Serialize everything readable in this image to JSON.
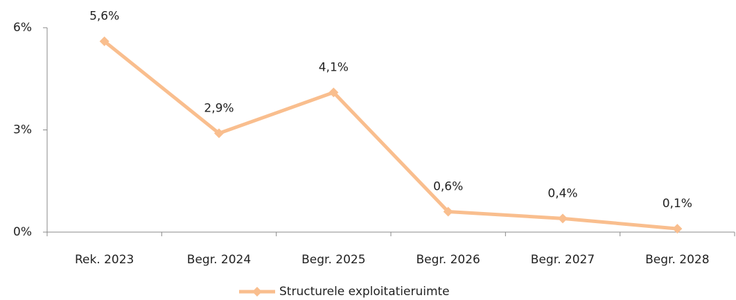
{
  "chart_data": {
    "type": "line",
    "categories": [
      "Rek. 2023",
      "Begr. 2024",
      "Begr. 2025",
      "Begr. 2026",
      "Begr. 2027",
      "Begr. 2028"
    ],
    "series": [
      {
        "name": "Structurele exploitatieruimte",
        "color": "#f9be8e",
        "values": [
          5.6,
          2.9,
          4.1,
          0.6,
          0.4,
          0.1
        ],
        "value_labels": [
          "5,6%",
          "2,9%",
          "4,1%",
          "0,6%",
          "0,4%",
          "0,1%"
        ]
      }
    ],
    "ylim": [
      0,
      6
    ],
    "yticks": [
      {
        "value": 0,
        "label": "0%"
      },
      {
        "value": 3,
        "label": "3%"
      },
      {
        "value": 6,
        "label": "6%"
      }
    ],
    "legend": "bottom"
  }
}
